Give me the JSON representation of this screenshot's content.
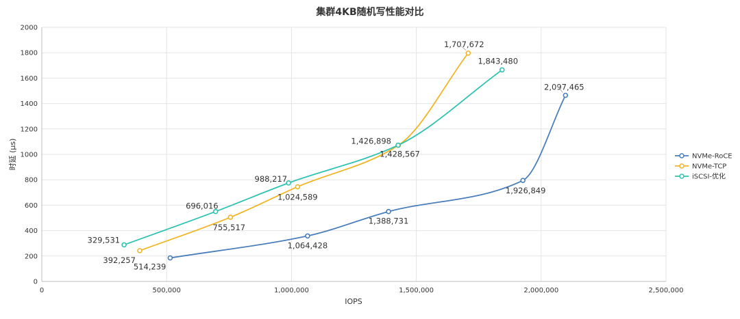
{
  "chart_data": {
    "type": "line",
    "title": "集群4KB随机写性能对比",
    "xlabel": "IOPS",
    "ylabel": "时延 (μs)",
    "xlim": [
      0,
      2500000
    ],
    "ylim": [
      0,
      2000
    ],
    "x_ticks": [
      0,
      500000,
      1000000,
      1500000,
      2000000,
      2500000
    ],
    "x_tick_labels": [
      "0",
      "500,000",
      "1,000,000",
      "1,500,000",
      "2,000,000",
      "2,500,000"
    ],
    "y_ticks": [
      0,
      200,
      400,
      600,
      800,
      1000,
      1200,
      1400,
      1600,
      1800,
      2000
    ],
    "y_tick_labels": [
      "0",
      "200",
      "400",
      "600",
      "800",
      "1000",
      "1200",
      "1400",
      "1600",
      "1800",
      "2000"
    ],
    "grid": true,
    "legend_position": "right",
    "series": [
      {
        "name": "NVMe-RoCE",
        "color": "#4a7ebb",
        "points": [
          {
            "x": 514239,
            "y": 185,
            "label": "514,239"
          },
          {
            "x": 1064428,
            "y": 358,
            "label": "1,064,428"
          },
          {
            "x": 1388731,
            "y": 550,
            "label": "1,388,731"
          },
          {
            "x": 1926849,
            "y": 795,
            "label": "1,926,849"
          },
          {
            "x": 2097465,
            "y": 1465,
            "label": "2,097,465"
          }
        ]
      },
      {
        "name": "NVMe-TCP",
        "color": "#f0b526",
        "points": [
          {
            "x": 392257,
            "y": 242,
            "label": "392,257"
          },
          {
            "x": 755517,
            "y": 505,
            "label": "755,517"
          },
          {
            "x": 1024589,
            "y": 745,
            "label": "1,024,589"
          },
          {
            "x": 1428567,
            "y": 1072,
            "label": "1,428,567"
          },
          {
            "x": 1707672,
            "y": 1797,
            "label": "1,707,672"
          }
        ]
      },
      {
        "name": "iSCSI-优化",
        "color": "#2fc2b1",
        "points": [
          {
            "x": 329531,
            "y": 288,
            "label": "329,531"
          },
          {
            "x": 696016,
            "y": 550,
            "label": "696,016"
          },
          {
            "x": 988217,
            "y": 775,
            "label": "988,217"
          },
          {
            "x": 1426898,
            "y": 1072,
            "label": "1,426,898"
          },
          {
            "x": 1843480,
            "y": 1665,
            "label": "1,843,480"
          }
        ]
      }
    ]
  }
}
